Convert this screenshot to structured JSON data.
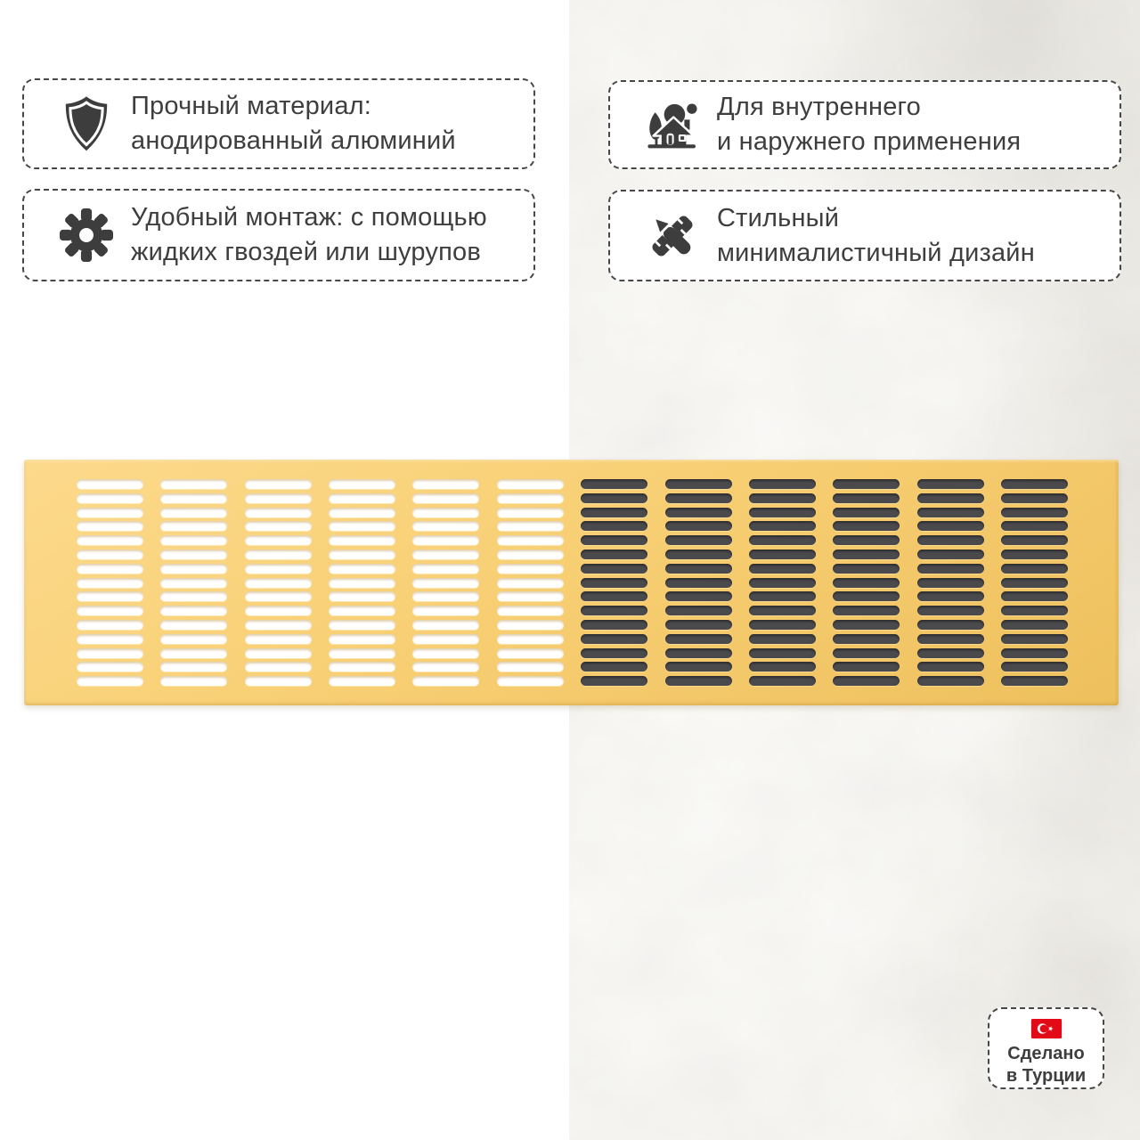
{
  "features": [
    {
      "id": "material",
      "icon": "shield-icon",
      "line1": "Прочный материал:",
      "line2": "анодированный алюминий"
    },
    {
      "id": "mounting",
      "icon": "gear-icon",
      "line1": "Удобный монтаж: с помощью",
      "line2": "жидких гвоздей или шурупов"
    },
    {
      "id": "usage",
      "icon": "house-outdoor-icon",
      "line1": "Для внутреннего",
      "line2": "и наружнего применения"
    },
    {
      "id": "design",
      "icon": "pencil-ruler-icon",
      "line1": "Стильный",
      "line2": "минималистичный дизайн"
    }
  ],
  "badge": {
    "icon": "turkey-flag-icon",
    "line1": "Сделано",
    "line2": "в Турции"
  },
  "product": {
    "kind": "ventilation-grille",
    "grille": {
      "columns": 12,
      "rows": 15,
      "light_slot_columns": 6,
      "colors": {
        "plate_light": "#fcda8c",
        "plate_mid": "#f8cf74",
        "plate_dark": "#eec05d",
        "slot_light": "#ffffff",
        "slot_dark": "#4a4a4d"
      }
    }
  },
  "colors": {
    "text": "#3e3e3e",
    "icon": "#3d3d3d",
    "border": "#474747",
    "bg_left": "#ffffff",
    "bg_right": "#e6e3dd",
    "flag_red": "#e30a17"
  }
}
